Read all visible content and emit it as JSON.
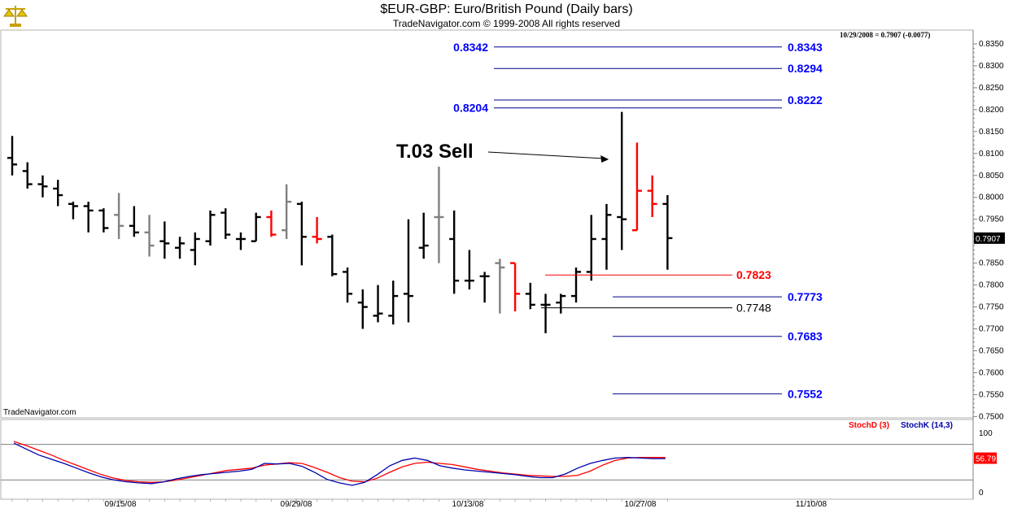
{
  "window": {
    "title": "$EUR-GBP:  Euro/British Pound  (Daily bars)",
    "copyright": "TradeNavigator.com © 1999-2008 All rights reserved",
    "last_value_readout": "10/29/2008 = 0.7907 (-0.0077)",
    "brand": "TradeNavigator.com",
    "logo_icon": "scales-icon"
  },
  "colors": {
    "up_bar": "#000000",
    "neutral_bar": "#808080",
    "signal_bar": "#ff0000",
    "level_line": "#00008b",
    "level_text": "#0000ff",
    "stochD": "#ff0000",
    "stochK": "#0000aa"
  },
  "chart_data": [
    {
      "type": "ohlc",
      "title": "$EUR-GBP:  Euro/British Pound  (Daily bars)",
      "ylim": [
        0.75,
        0.838
      ],
      "y_ticks": [
        "0.8350",
        "0.8300",
        "0.8250",
        "0.8200",
        "0.8150",
        "0.8100",
        "0.8050",
        "0.8000",
        "0.7950",
        "0.7900",
        "0.7850",
        "0.7800",
        "0.7750",
        "0.7700",
        "0.7650",
        "0.7600",
        "0.7550",
        "0.7500"
      ],
      "x_ticks": [
        "09/15/08",
        "09/29/08",
        "10/13/08",
        "10/27/08",
        "11/10/08"
      ],
      "last_price_label": "0.7907",
      "bars": [
        {
          "o": 0.809,
          "h": 0.814,
          "l": 0.805,
          "c": 0.8075,
          "color": "black"
        },
        {
          "o": 0.806,
          "h": 0.808,
          "l": 0.802,
          "c": 0.803,
          "color": "black"
        },
        {
          "o": 0.803,
          "h": 0.805,
          "l": 0.8,
          "c": 0.8025,
          "color": "black"
        },
        {
          "o": 0.802,
          "h": 0.804,
          "l": 0.798,
          "c": 0.8005,
          "color": "black"
        },
        {
          "o": 0.7985,
          "h": 0.799,
          "l": 0.795,
          "c": 0.798,
          "color": "black"
        },
        {
          "o": 0.798,
          "h": 0.799,
          "l": 0.792,
          "c": 0.797,
          "color": "black"
        },
        {
          "o": 0.797,
          "h": 0.7975,
          "l": 0.792,
          "c": 0.793,
          "color": "black"
        },
        {
          "o": 0.796,
          "h": 0.801,
          "l": 0.7905,
          "c": 0.7935,
          "color": "gray"
        },
        {
          "o": 0.7935,
          "h": 0.798,
          "l": 0.791,
          "c": 0.792,
          "color": "black"
        },
        {
          "o": 0.792,
          "h": 0.796,
          "l": 0.7865,
          "c": 0.789,
          "color": "gray"
        },
        {
          "o": 0.79,
          "h": 0.7945,
          "l": 0.786,
          "c": 0.7895,
          "color": "black"
        },
        {
          "o": 0.7885,
          "h": 0.791,
          "l": 0.786,
          "c": 0.7895,
          "color": "black"
        },
        {
          "o": 0.788,
          "h": 0.792,
          "l": 0.7845,
          "c": 0.7905,
          "color": "black"
        },
        {
          "o": 0.79,
          "h": 0.797,
          "l": 0.789,
          "c": 0.796,
          "color": "black"
        },
        {
          "o": 0.7965,
          "h": 0.7975,
          "l": 0.7905,
          "c": 0.7915,
          "color": "black"
        },
        {
          "o": 0.7905,
          "h": 0.792,
          "l": 0.788,
          "c": 0.7905,
          "color": "black"
        },
        {
          "o": 0.79,
          "h": 0.7965,
          "l": 0.79,
          "c": 0.7955,
          "color": "black"
        },
        {
          "o": 0.7955,
          "h": 0.797,
          "l": 0.791,
          "c": 0.7915,
          "color": "red"
        },
        {
          "o": 0.7925,
          "h": 0.803,
          "l": 0.7905,
          "c": 0.799,
          "color": "gray"
        },
        {
          "o": 0.7985,
          "h": 0.799,
          "l": 0.7845,
          "c": 0.791,
          "color": "black"
        },
        {
          "o": 0.791,
          "h": 0.7955,
          "l": 0.7895,
          "c": 0.7905,
          "color": "red"
        },
        {
          "o": 0.791,
          "h": 0.7915,
          "l": 0.782,
          "c": 0.7825,
          "color": "black"
        },
        {
          "o": 0.783,
          "h": 0.784,
          "l": 0.776,
          "c": 0.778,
          "color": "black"
        },
        {
          "o": 0.776,
          "h": 0.779,
          "l": 0.77,
          "c": 0.775,
          "color": "black"
        },
        {
          "o": 0.773,
          "h": 0.78,
          "l": 0.7715,
          "c": 0.7735,
          "color": "black"
        },
        {
          "o": 0.773,
          "h": 0.781,
          "l": 0.771,
          "c": 0.7775,
          "color": "black"
        },
        {
          "o": 0.778,
          "h": 0.795,
          "l": 0.7715,
          "c": 0.7775,
          "color": "black"
        },
        {
          "o": 0.7885,
          "h": 0.7965,
          "l": 0.786,
          "c": 0.789,
          "color": "black"
        },
        {
          "o": 0.7955,
          "h": 0.807,
          "l": 0.785,
          "c": 0.7955,
          "color": "gray"
        },
        {
          "o": 0.7905,
          "h": 0.797,
          "l": 0.778,
          "c": 0.781,
          "color": "black"
        },
        {
          "o": 0.781,
          "h": 0.788,
          "l": 0.779,
          "c": 0.781,
          "color": "black"
        },
        {
          "o": 0.782,
          "h": 0.783,
          "l": 0.776,
          "c": 0.782,
          "color": "black"
        },
        {
          "o": 0.785,
          "h": 0.786,
          "l": 0.7735,
          "c": 0.784,
          "color": "gray"
        },
        {
          "o": 0.785,
          "h": 0.785,
          "l": 0.774,
          "c": 0.778,
          "color": "red"
        },
        {
          "o": 0.778,
          "h": 0.7805,
          "l": 0.7745,
          "c": 0.7755,
          "color": "black"
        },
        {
          "o": 0.7755,
          "h": 0.778,
          "l": 0.769,
          "c": 0.7755,
          "color": "black"
        },
        {
          "o": 0.776,
          "h": 0.778,
          "l": 0.7735,
          "c": 0.7775,
          "color": "black"
        },
        {
          "o": 0.7775,
          "h": 0.784,
          "l": 0.776,
          "c": 0.783,
          "color": "black"
        },
        {
          "o": 0.783,
          "h": 0.796,
          "l": 0.781,
          "c": 0.7905,
          "color": "black"
        },
        {
          "o": 0.7905,
          "h": 0.7985,
          "l": 0.7835,
          "c": 0.796,
          "color": "black"
        },
        {
          "o": 0.7955,
          "h": 0.8195,
          "l": 0.788,
          "c": 0.795,
          "color": "black"
        },
        {
          "o": 0.7925,
          "h": 0.8125,
          "l": 0.7925,
          "c": 0.8015,
          "color": "red"
        },
        {
          "o": 0.8015,
          "h": 0.805,
          "l": 0.7955,
          "c": 0.7985,
          "color": "red"
        },
        {
          "o": 0.7985,
          "h": 0.8005,
          "l": 0.7835,
          "c": 0.7907,
          "color": "black"
        }
      ],
      "levels": [
        {
          "value": 0.8343,
          "label_right": "0.8343",
          "label_left": "0.8342",
          "color": "blue",
          "span": "long"
        },
        {
          "value": 0.8294,
          "label_right": "0.8294",
          "label_left": "",
          "color": "blue",
          "span": "long"
        },
        {
          "value": 0.8222,
          "label_right": "0.8222",
          "label_left": "",
          "color": "blue",
          "span": "long"
        },
        {
          "value": 0.8204,
          "label_right": "",
          "label_left": "0.8204",
          "color": "blue",
          "span": "long"
        },
        {
          "value": 0.7823,
          "label_right": "0.7823",
          "label_left": "",
          "color": "red",
          "span": "mid"
        },
        {
          "value": 0.7773,
          "label_right": "0.7773",
          "label_left": "",
          "color": "blue",
          "span": "short"
        },
        {
          "value": 0.7748,
          "label_right": "0.7748",
          "label_left": "",
          "color": "black",
          "span": "mid"
        },
        {
          "value": 0.7683,
          "label_right": "0.7683",
          "label_left": "",
          "color": "blue",
          "span": "short"
        },
        {
          "value": 0.7552,
          "label_right": "0.7552",
          "label_left": "",
          "color": "blue",
          "span": "short"
        }
      ],
      "annotation": {
        "text": "T.03 Sell",
        "arrow_to_bar": 40
      }
    },
    {
      "type": "line",
      "ylim": [
        0,
        100
      ],
      "y_ticks": [
        "100",
        "0"
      ],
      "reference_lines": [
        80,
        20
      ],
      "legend": [
        "StochD (3)",
        "StochK (14,3)"
      ],
      "last_value_label": "56.79",
      "series": [
        {
          "name": "StochD (3)",
          "values": [
            85,
            78,
            70,
            62,
            53,
            45,
            37,
            29,
            23,
            19,
            17,
            16,
            17,
            20,
            24,
            28,
            32,
            36,
            38,
            40,
            45,
            47,
            49,
            48,
            41,
            33,
            24,
            18,
            17,
            23,
            33,
            42,
            48,
            50,
            48,
            46,
            42,
            38,
            35,
            32,
            30,
            28,
            27,
            26,
            26,
            28,
            35,
            45,
            53,
            57,
            58,
            58,
            58
          ]
        },
        {
          "name": "StochK (14,3)",
          "values": [
            82,
            72,
            62,
            55,
            48,
            40,
            32,
            25,
            20,
            17,
            15,
            14,
            17,
            22,
            26,
            29,
            31,
            33,
            35,
            38,
            48,
            47,
            48,
            43,
            33,
            21,
            15,
            11,
            16,
            29,
            44,
            53,
            57,
            53,
            44,
            40,
            37,
            35,
            33,
            31,
            29,
            26,
            24,
            24,
            30,
            40,
            48,
            53,
            57,
            58,
            57,
            56,
            56
          ]
        }
      ]
    }
  ]
}
